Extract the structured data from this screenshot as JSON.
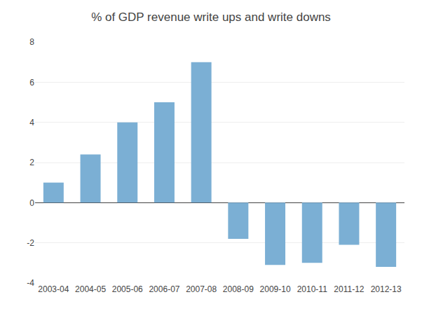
{
  "chart_data": {
    "type": "bar",
    "title": "% of GDP revenue write ups and write downs",
    "categories": [
      "2003-04",
      "2004-05",
      "2005-06",
      "2006-07",
      "2007-08",
      "2008-09",
      "2009-10",
      "2010-11",
      "2011-12",
      "2012-13"
    ],
    "values": [
      1.0,
      2.4,
      4.0,
      5.0,
      7.0,
      -1.8,
      -3.1,
      -3.0,
      -2.1,
      -3.2
    ],
    "color": "#7bafd4",
    "ylim": [
      -4,
      8
    ],
    "yticks": [
      -4,
      -2,
      0,
      2,
      4,
      6,
      8
    ],
    "grid": true
  }
}
